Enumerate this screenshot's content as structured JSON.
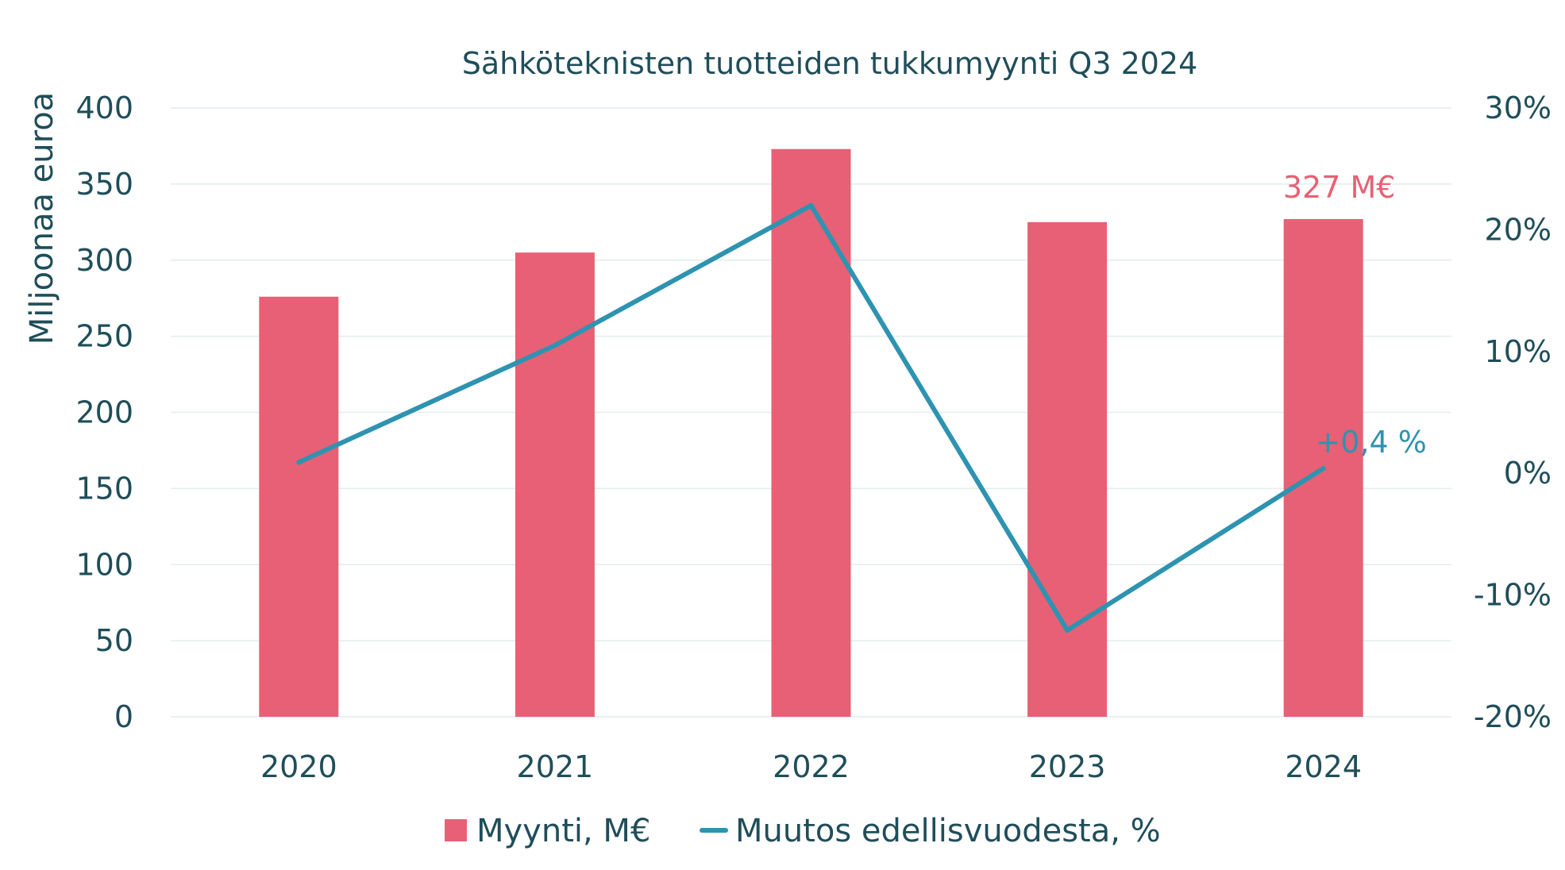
{
  "chart_data": {
    "type": "bar",
    "title": "Sähköteknisten tuotteiden tukkumyynti Q3 2024",
    "categories": [
      "2020",
      "2021",
      "2022",
      "2023",
      "2024"
    ],
    "ylabel": "Miljoonaa euroa",
    "ylim": [
      0,
      400
    ],
    "yticks": [
      "0",
      "50",
      "100",
      "150",
      "200",
      "250",
      "300",
      "350",
      "400"
    ],
    "y2lim": [
      -20,
      30
    ],
    "y2ticks": [
      "-20%",
      "-10%",
      "0%",
      "10%",
      "20%",
      "30%"
    ],
    "series": [
      {
        "name": "Myynti, M€",
        "type": "bar",
        "axis": "left",
        "color": "#e86075",
        "values": [
          276,
          305,
          373,
          325,
          327
        ]
      },
      {
        "name": "Muutos edellisvuodesta, %",
        "type": "line",
        "axis": "right",
        "color": "#2e93b0",
        "values": [
          0.9,
          10.5,
          22.0,
          -12.9,
          0.4
        ]
      }
    ],
    "annotations": [
      {
        "text": "327 M€",
        "series": 0,
        "category": "2024",
        "color": "#e86075"
      },
      {
        "text": "+0,4 %",
        "series": 1,
        "category": "2024",
        "color": "#2e93b0"
      }
    ],
    "grid": true,
    "legend": "bottom"
  }
}
